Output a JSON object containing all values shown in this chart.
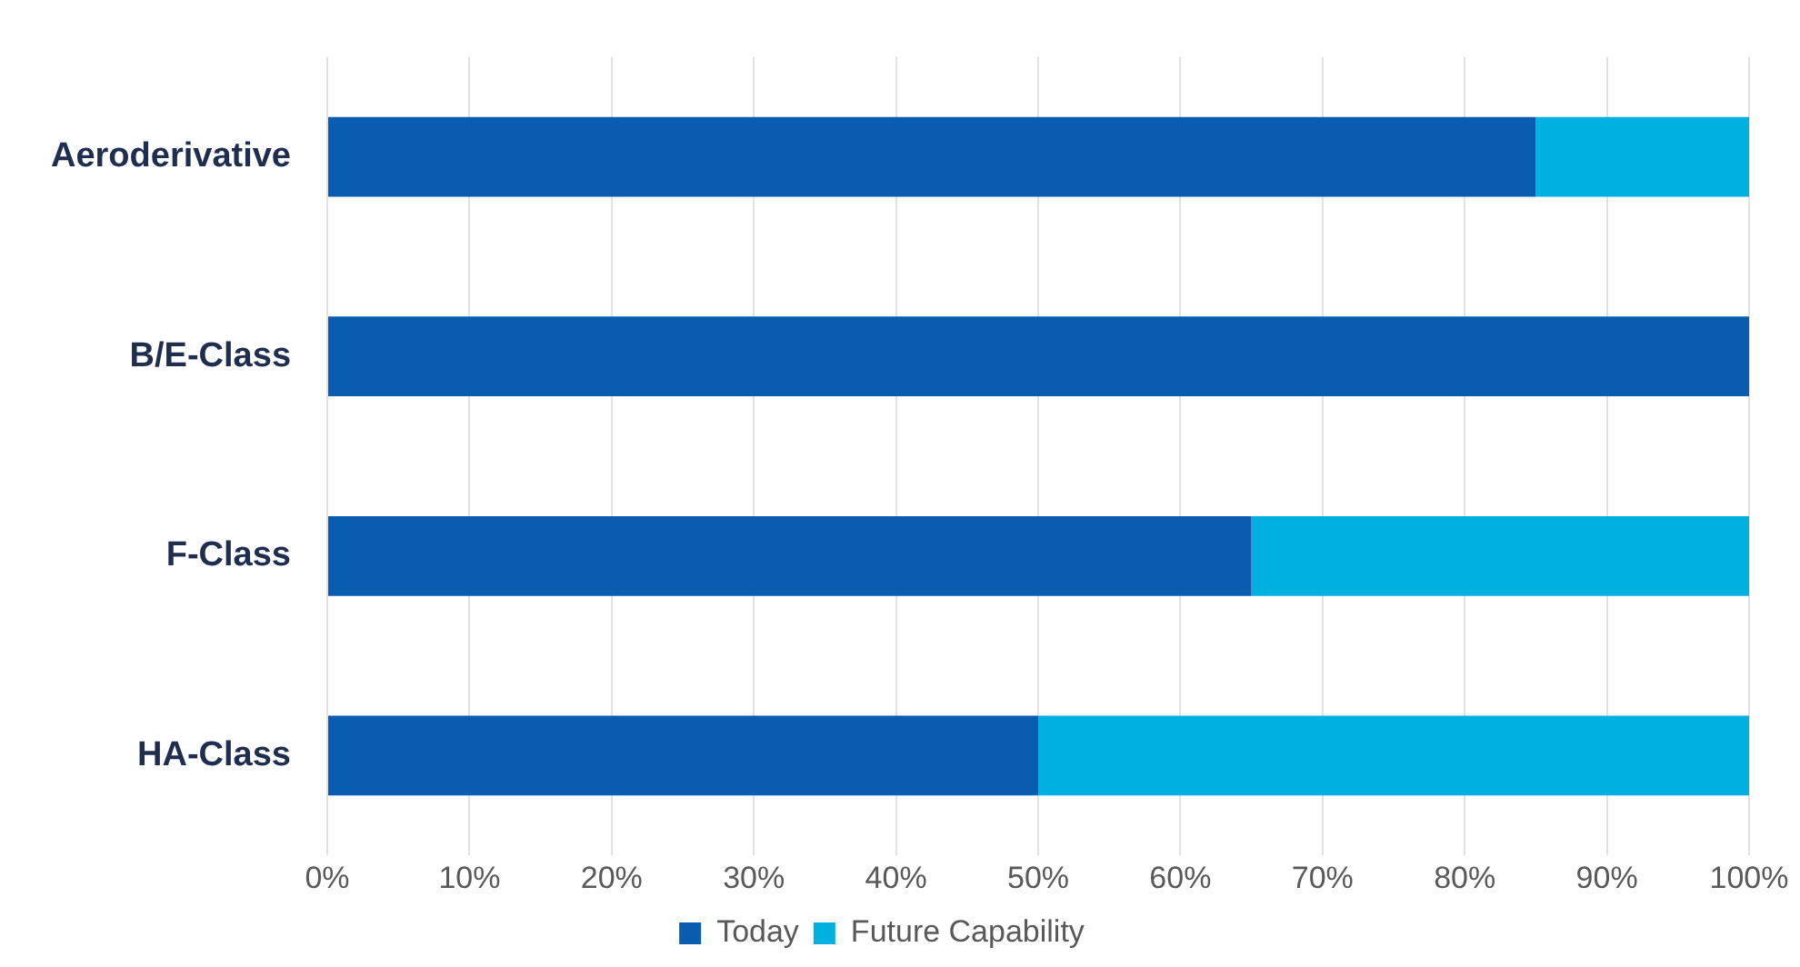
{
  "chart_data": {
    "type": "bar",
    "orientation": "horizontal",
    "stacked": true,
    "categories": [
      "Aeroderivative",
      "B/E-Class",
      "F-Class",
      "HA-Class"
    ],
    "series": [
      {
        "name": "Today",
        "color": "#0a5cb0",
        "values": [
          85,
          100,
          65,
          50
        ]
      },
      {
        "name": "Future Capability",
        "color": "#00b0e0",
        "values": [
          15,
          0,
          35,
          50
        ]
      }
    ],
    "xlim": [
      0,
      100
    ],
    "xticks": [
      {
        "value": 0,
        "label": "0%"
      },
      {
        "value": 10,
        "label": "10%"
      },
      {
        "value": 20,
        "label": "20%"
      },
      {
        "value": 30,
        "label": "30%"
      },
      {
        "value": 40,
        "label": "40%"
      },
      {
        "value": 50,
        "label": "50%"
      },
      {
        "value": 60,
        "label": "60%"
      },
      {
        "value": 70,
        "label": "70%"
      },
      {
        "value": 80,
        "label": "80%"
      },
      {
        "value": 90,
        "label": "90%"
      },
      {
        "value": 100,
        "label": "100%"
      }
    ],
    "grid": "x",
    "legend": "bottom"
  }
}
